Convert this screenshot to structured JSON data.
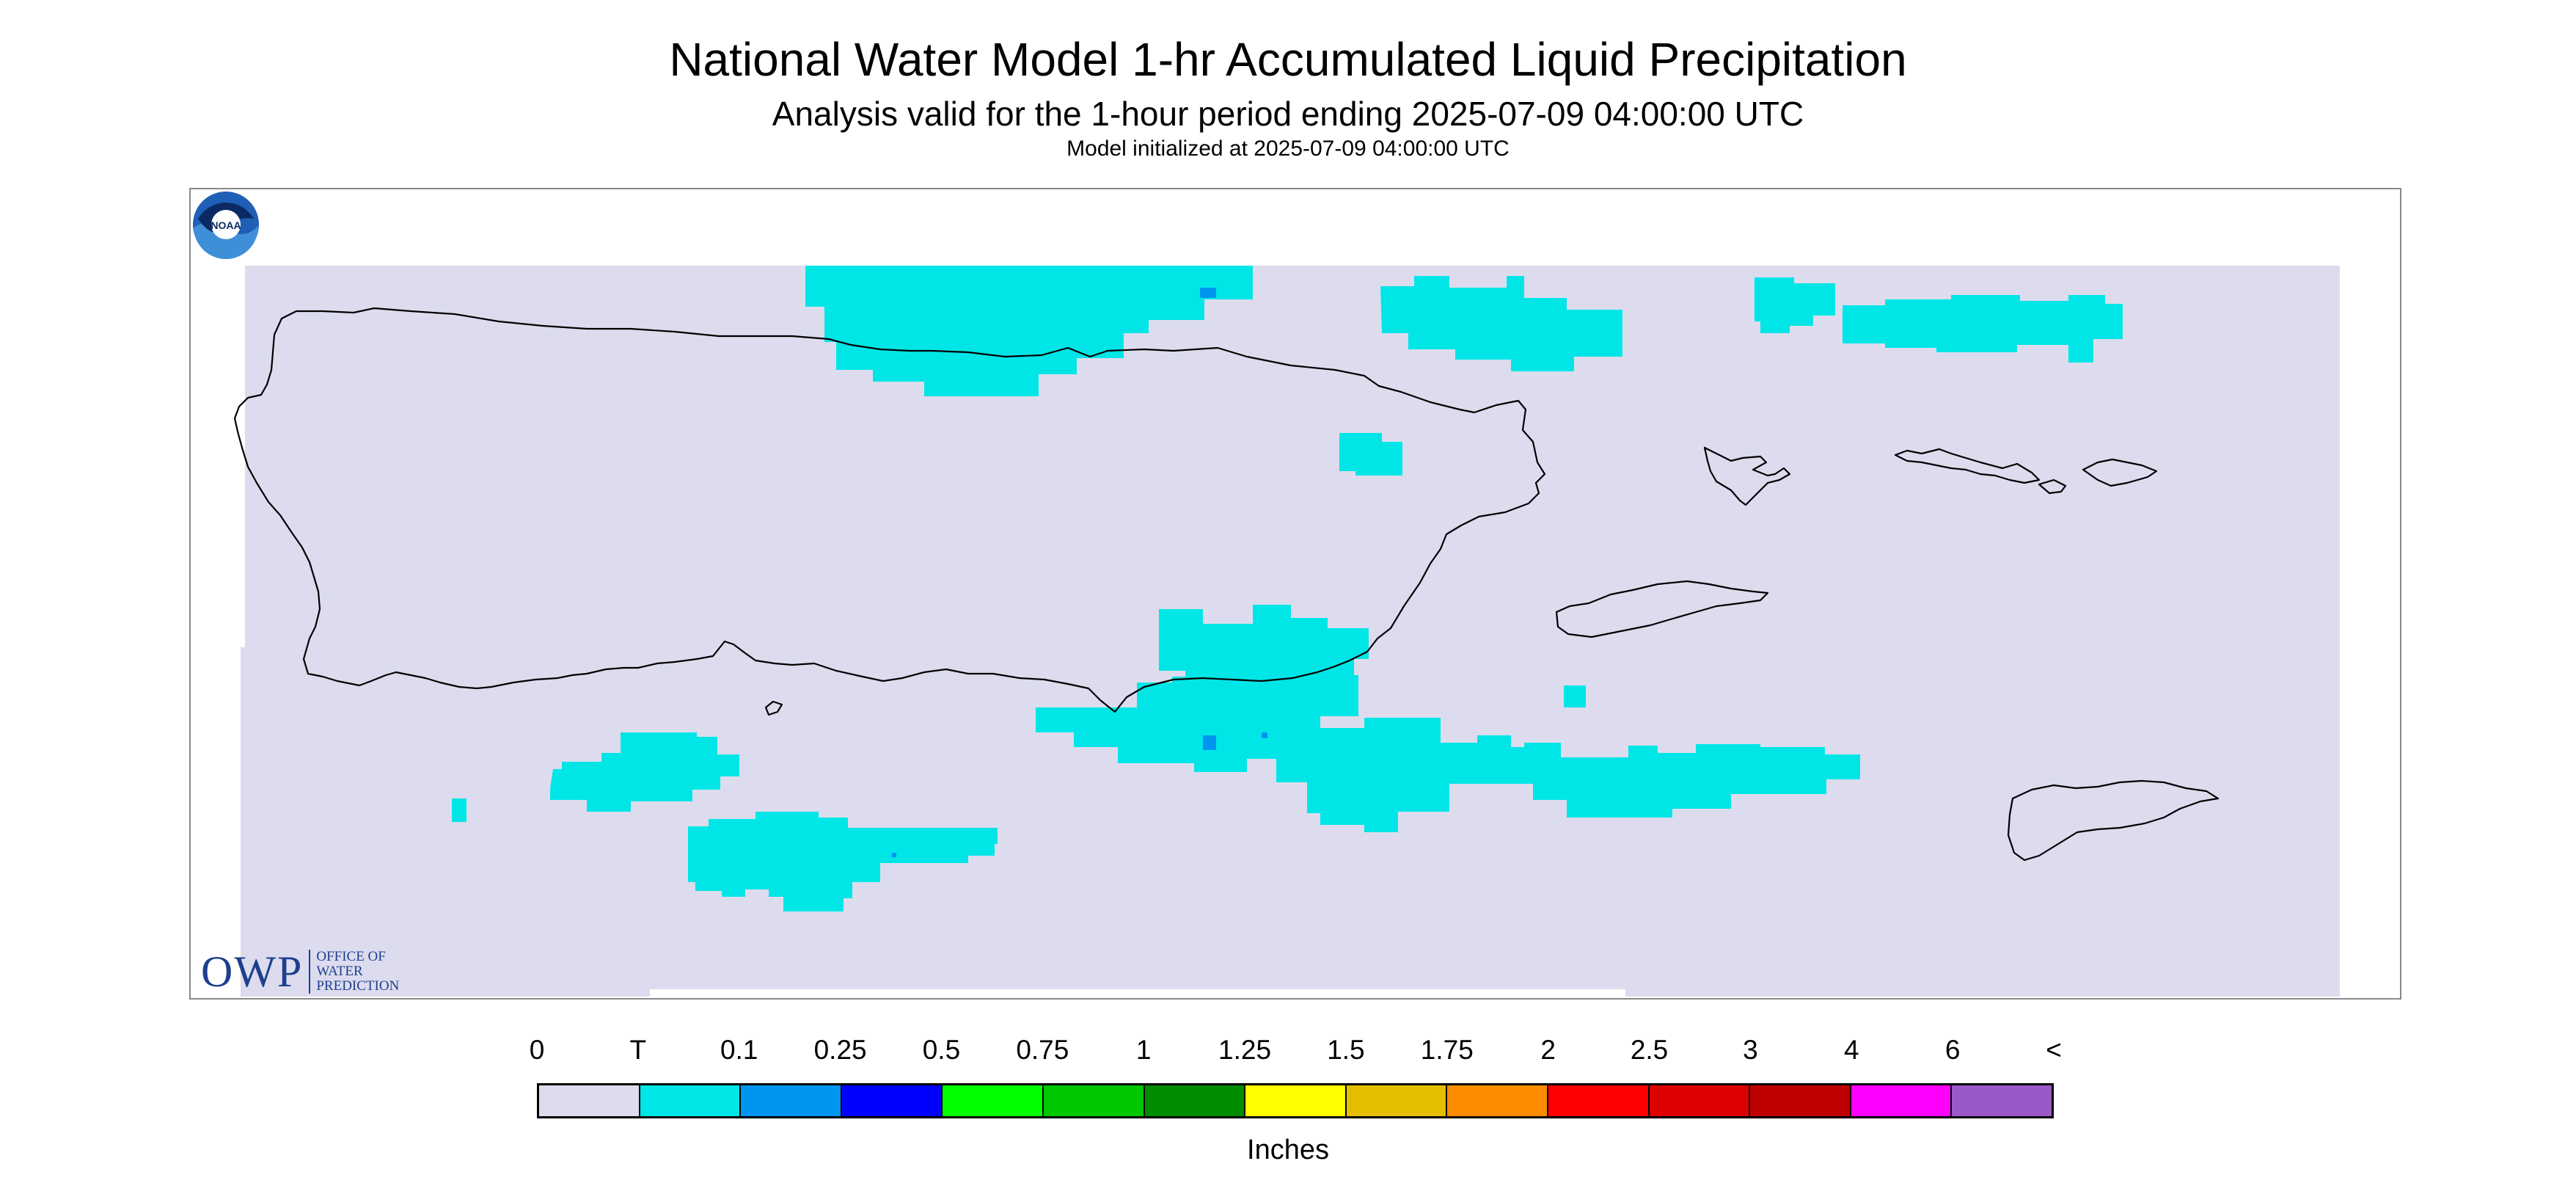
{
  "header": {
    "title": "National Water Model 1-hr Accumulated Liquid Precipitation",
    "subtitle": "Analysis valid for the 1-hour period ending 2025-07-09 04:00:00 UTC",
    "init_text": "Model initialized at 2025-07-09 04:00:00 UTC"
  },
  "map": {
    "background_color": "#dcdcee",
    "trace_color": "#00e6e6",
    "light_color": "#0096f0",
    "coastline_color": "#000000",
    "regions": [
      "Puerto Rico",
      "Vieques",
      "Culebra",
      "St. Thomas",
      "St. John",
      "St. Croix"
    ]
  },
  "logos": {
    "owp_big": "OWP",
    "owp_line1": "OFFICE OF",
    "owp_line2": "WATER",
    "owp_line3": "PREDICTION",
    "noaa": "NOAA"
  },
  "legend": {
    "labels": [
      "0",
      "T",
      "0.1",
      "0.25",
      "0.5",
      "0.75",
      "1",
      "1.25",
      "1.5",
      "1.75",
      "2",
      "2.5",
      "3",
      "4",
      "6",
      "<"
    ],
    "colors": [
      "#dcdcee",
      "#00e6e6",
      "#0096f0",
      "#0000ff",
      "#00ff00",
      "#00c800",
      "#008c00",
      "#ffff00",
      "#e6be00",
      "#ff8c00",
      "#ff0000",
      "#dc0000",
      "#be0000",
      "#ff00ff",
      "#9b59c8"
    ],
    "units": "Inches"
  }
}
